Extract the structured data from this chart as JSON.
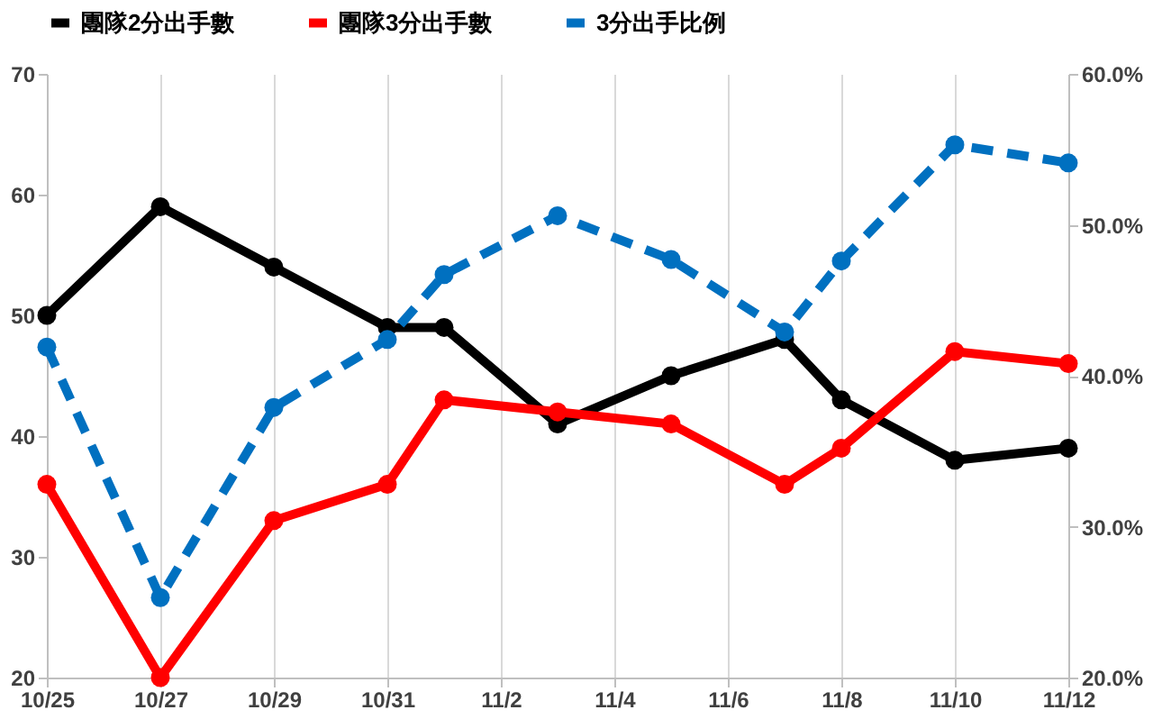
{
  "chart_data": {
    "type": "line",
    "x": [
      "--10-25",
      "--10-27",
      "--10-29",
      "--10-31",
      "--11-01",
      "--11-03",
      "--11-05",
      "--11-07",
      "--11-08",
      "--11-10",
      "--11-12"
    ],
    "xlim": [
      "--10-25",
      "--11-12"
    ],
    "xticks": [
      {
        "value": "--10-25",
        "label": "10/25"
      },
      {
        "value": "--10-27",
        "label": "10/27"
      },
      {
        "value": "--10-29",
        "label": "10/29"
      },
      {
        "value": "--10-31",
        "label": "10/31"
      },
      {
        "value": "--11-02",
        "label": "11/2"
      },
      {
        "value": "--11-04",
        "label": "11/4"
      },
      {
        "value": "--11-06",
        "label": "11/6"
      },
      {
        "value": "--11-08",
        "label": "11/8"
      },
      {
        "value": "--11-10",
        "label": "11/10"
      },
      {
        "value": "--11-12",
        "label": "11/12"
      }
    ],
    "ylim": [
      20,
      70
    ],
    "yticks": [
      20,
      30,
      40,
      50,
      60,
      70
    ],
    "y2lim": [
      20,
      60
    ],
    "y2ticks": [
      {
        "value": 20,
        "label": "20.0%"
      },
      {
        "value": 30,
        "label": "30.0%"
      },
      {
        "value": 40,
        "label": "40.0%"
      },
      {
        "value": 50,
        "label": "50.0%"
      },
      {
        "value": 60,
        "label": "60.0%"
      }
    ],
    "series": [
      {
        "name": "團隊2分出手數",
        "color": "#000000",
        "values": [
          50,
          59,
          54,
          49,
          49,
          41,
          45,
          48,
          43,
          38,
          39
        ]
      },
      {
        "name": "團隊3分出手數",
        "color": "#ff0000",
        "values": [
          36,
          20,
          33,
          36,
          43,
          42,
          41,
          36,
          39,
          47,
          46
        ]
      },
      {
        "name": "3分出手比例",
        "color": "#0070c0",
        "axis": "y2",
        "line_style": "dashed",
        "values": [
          41.9,
          25.3,
          37.9,
          42.4,
          46.7,
          50.6,
          47.7,
          42.9,
          47.6,
          55.3,
          54.1
        ]
      }
    ],
    "grid": "x",
    "legend": "top",
    "marker": "circle",
    "line_style": "solid"
  }
}
